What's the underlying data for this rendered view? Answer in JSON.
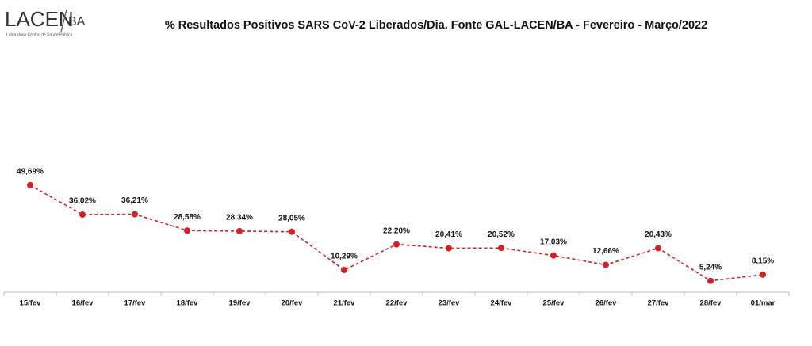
{
  "logo": {
    "name": "LACEN",
    "suffix": "BA",
    "tagline": "Laboratório Central de Saúde Pública"
  },
  "chart_data": {
    "type": "line",
    "title": "% Resultados Positivos SARS CoV-2 Liberados/Dia. Fonte GAL-LACEN/BA  - Fevereiro - Março/2022",
    "categories": [
      "15/fev",
      "16/fev",
      "17/fev",
      "18/fev",
      "19/fev",
      "20/fev",
      "21/fev",
      "22/fev",
      "23/fev",
      "24/fev",
      "25/fev",
      "26/fev",
      "27/fev",
      "28/fev",
      "01/mar"
    ],
    "values": [
      49.69,
      36.02,
      36.21,
      28.58,
      28.34,
      28.05,
      10.29,
      22.2,
      20.41,
      20.52,
      17.03,
      12.66,
      20.43,
      5.24,
      8.15
    ],
    "value_labels": [
      "49,69%",
      "36,02%",
      "36,21%",
      "28,58%",
      "28,34%",
      "28,05%",
      "10,29%",
      "22,20%",
      "20,41%",
      "20,52%",
      "17,03%",
      "12,66%",
      "20,43%",
      "5,24%",
      "8,15%"
    ],
    "color": "#d42020"
  }
}
